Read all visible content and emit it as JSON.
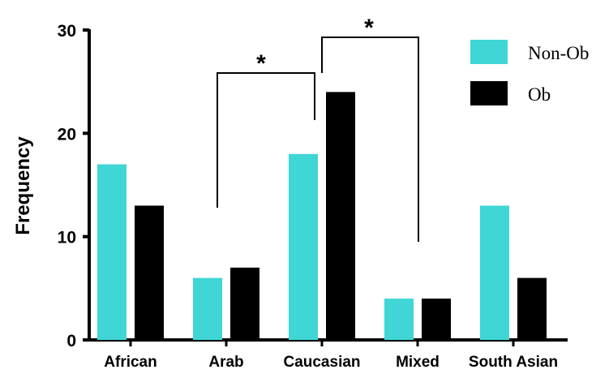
{
  "chart_data": {
    "type": "bar",
    "title": "",
    "xlabel": "",
    "ylabel": "Frequency",
    "ylim": [
      0,
      30
    ],
    "yticks": [
      0,
      10,
      20,
      30
    ],
    "categories": [
      "African",
      "Arab",
      "Caucasian",
      "Mixed",
      "South Asian"
    ],
    "series": [
      {
        "name": "Non-Ob",
        "color": "#40d6d6",
        "values": [
          17,
          6,
          18,
          4,
          13
        ]
      },
      {
        "name": "Ob",
        "color": "#000000",
        "values": [
          13,
          7,
          24,
          4,
          6
        ]
      }
    ],
    "legend": {
      "placement": "top-right"
    },
    "significance": [
      {
        "from": "Arab",
        "to": "Caucasian",
        "label": "*"
      },
      {
        "from": "Caucasian",
        "to": "Mixed",
        "label": "*"
      }
    ]
  }
}
